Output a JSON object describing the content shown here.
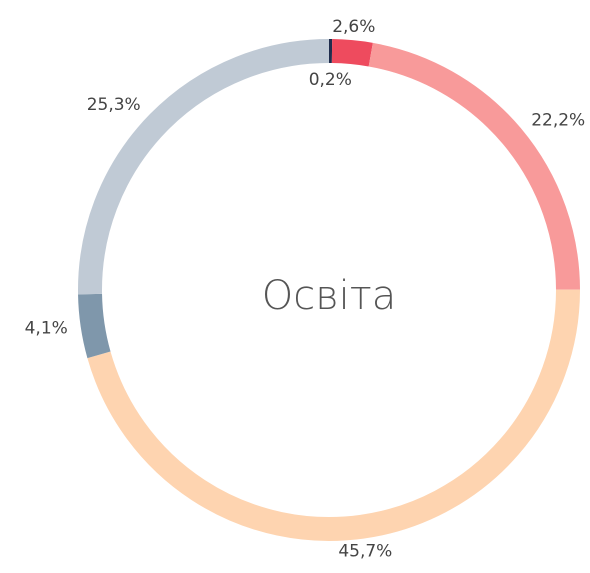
{
  "chart_data": {
    "type": "donut",
    "title": "Освіта",
    "categories": [
      null,
      null,
      null,
      null,
      null,
      null
    ],
    "values": [
      0.2,
      2.6,
      22.2,
      45.7,
      4.1,
      25.3
    ],
    "value_labels": [
      "0,2%",
      "2,6%",
      "22,2%",
      "45,7%",
      "4,1%",
      "25,3%"
    ],
    "colors": [
      "#1f2d4d",
      "#ee4b5e",
      "#f89a9a",
      "#fed4b0",
      "#7f97ab",
      "#c0cad5"
    ]
  }
}
